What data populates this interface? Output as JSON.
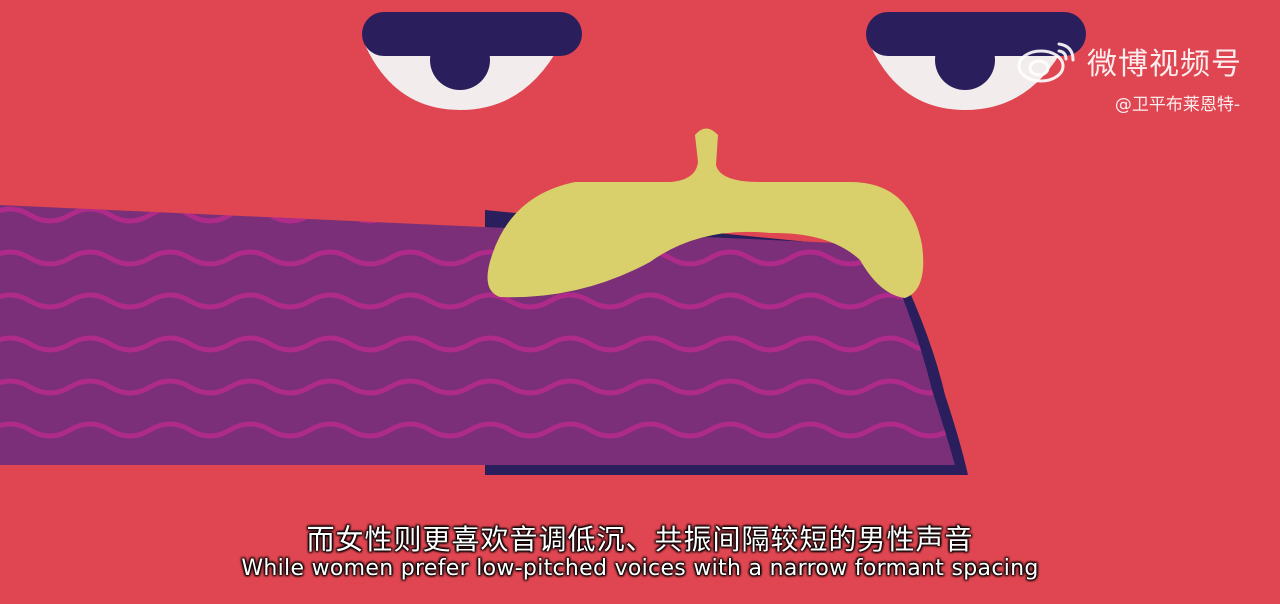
{
  "video": {
    "subtitle_zh": "而女性则更喜欢音调低沉、共振间隔较短的男性声音",
    "subtitle_en": "While women prefer low-pitched voices with a narrow formant spacing"
  },
  "watermark": {
    "platform": "微博视频号",
    "handle": "@卫平布莱恩特-",
    "icon": "weibo-logo-icon"
  },
  "colors": {
    "background": "#df4651",
    "eye_lid": "#2a1f5c",
    "eye_white": "#f3ecec",
    "pupil": "#2a1f5c",
    "mustache": "#d9d06b",
    "beard": "#7a2f78",
    "beard_wave": "#b52b8c",
    "beard_shadow": "#2a1f5c"
  }
}
